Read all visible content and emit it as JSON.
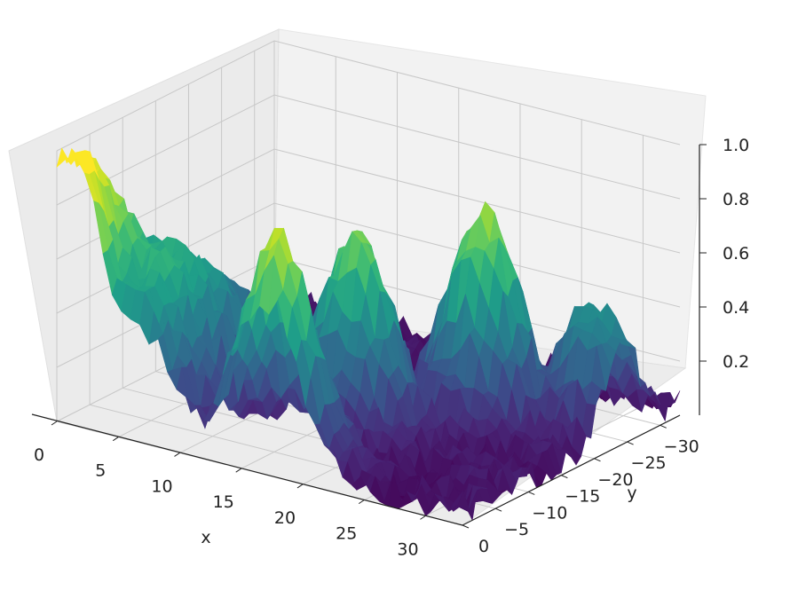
{
  "chart_data": {
    "type": "surface3d",
    "colormap": "viridis",
    "colormap_stops": [
      "#440154",
      "#482878",
      "#3e4989",
      "#31688e",
      "#26828e",
      "#1f9e89",
      "#35b779",
      "#6ece58",
      "#b5de2b",
      "#fde725"
    ],
    "grid": true,
    "pane_color": "#f2f2f2",
    "grid_color": "#c8c8c8",
    "x": {
      "label": "x",
      "ticks": [
        0,
        5,
        10,
        15,
        20,
        25,
        30
      ],
      "tick_labels": [
        "0",
        "5",
        "10",
        "15",
        "20",
        "25",
        "30"
      ],
      "range": [
        0,
        33
      ]
    },
    "y": {
      "label": "y",
      "ticks": [
        0,
        -5,
        -10,
        -15,
        -20,
        -25,
        -30
      ],
      "tick_labels": [
        "0",
        "−5",
        "−10",
        "−15",
        "−20",
        "−25",
        "−30"
      ],
      "range": [
        -33,
        0
      ]
    },
    "z": {
      "label": "",
      "ticks": [
        0.2,
        0.4,
        0.6,
        0.8,
        1.0
      ],
      "tick_labels": [
        "0.2",
        "0.4",
        "0.6",
        "0.8",
        "1.0"
      ],
      "range": [
        0,
        1.0
      ]
    },
    "surface_features": [
      {
        "kind": "ridge",
        "x_range": [
          0,
          1
        ],
        "y": 0,
        "peak_z": 0.95
      },
      {
        "kind": "ridge",
        "x_range": [
          0,
          6
        ],
        "y": -6,
        "peak_z": 0.55
      },
      {
        "kind": "hill",
        "x": 17,
        "y": -2,
        "peak_z": 0.8
      },
      {
        "kind": "hill",
        "x": 18,
        "y": -12,
        "peak_z": 0.7
      },
      {
        "kind": "hill",
        "x": 24,
        "y": -20,
        "peak_z": 0.75
      },
      {
        "kind": "hill",
        "x": 31,
        "y": -24,
        "peak_z": 0.45
      },
      {
        "kind": "noise_floor",
        "z": 0.05
      }
    ]
  }
}
